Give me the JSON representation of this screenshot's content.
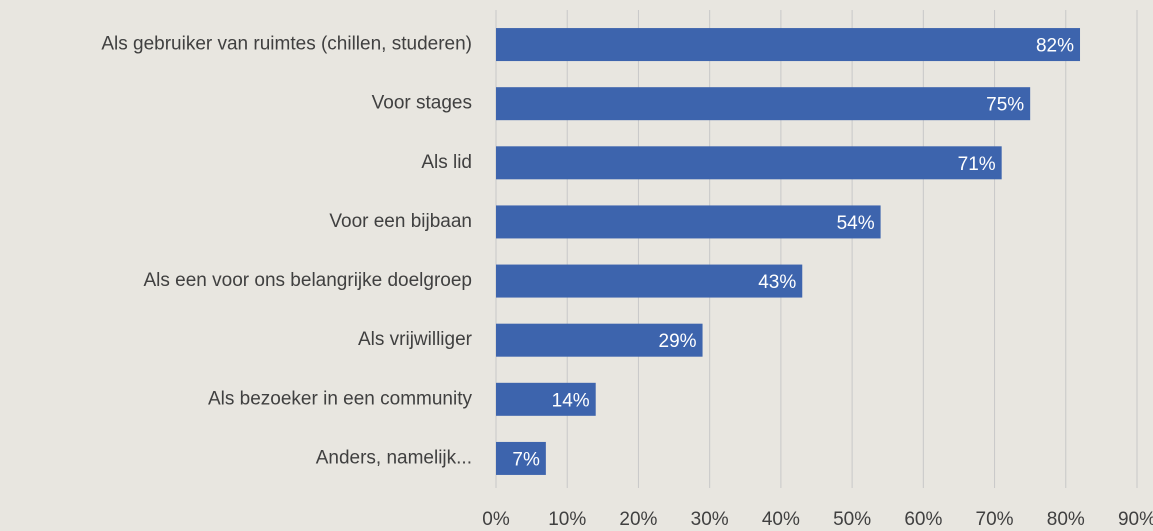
{
  "chart_data": {
    "type": "bar",
    "orientation": "horizontal",
    "categories": [
      "Als gebruiker van ruimtes (chillen, studeren)",
      "Voor stages",
      "Als lid",
      "Voor een bijbaan",
      "Als een voor ons belangrijke doelgroep",
      "Als vrijwilliger",
      "Als bezoeker in een community",
      "Anders, namelijk..."
    ],
    "values": [
      82,
      75,
      71,
      54,
      43,
      29,
      14,
      7
    ],
    "value_labels": [
      "82%",
      "75%",
      "71%",
      "54%",
      "43%",
      "29%",
      "14%",
      "7%"
    ],
    "color": "#3d64ad",
    "xlim": [
      0,
      90
    ],
    "xticks": [
      {
        "value": 0,
        "label": "0%"
      },
      {
        "value": 10,
        "label": "10%"
      },
      {
        "value": 20,
        "label": "20%"
      },
      {
        "value": 30,
        "label": "30%"
      },
      {
        "value": 40,
        "label": "40%"
      },
      {
        "value": 50,
        "label": "50%"
      },
      {
        "value": 60,
        "label": "60%"
      },
      {
        "value": 70,
        "label": "70%"
      },
      {
        "value": 80,
        "label": "80%"
      },
      {
        "value": 90,
        "label": "90%"
      }
    ],
    "grid": true
  }
}
